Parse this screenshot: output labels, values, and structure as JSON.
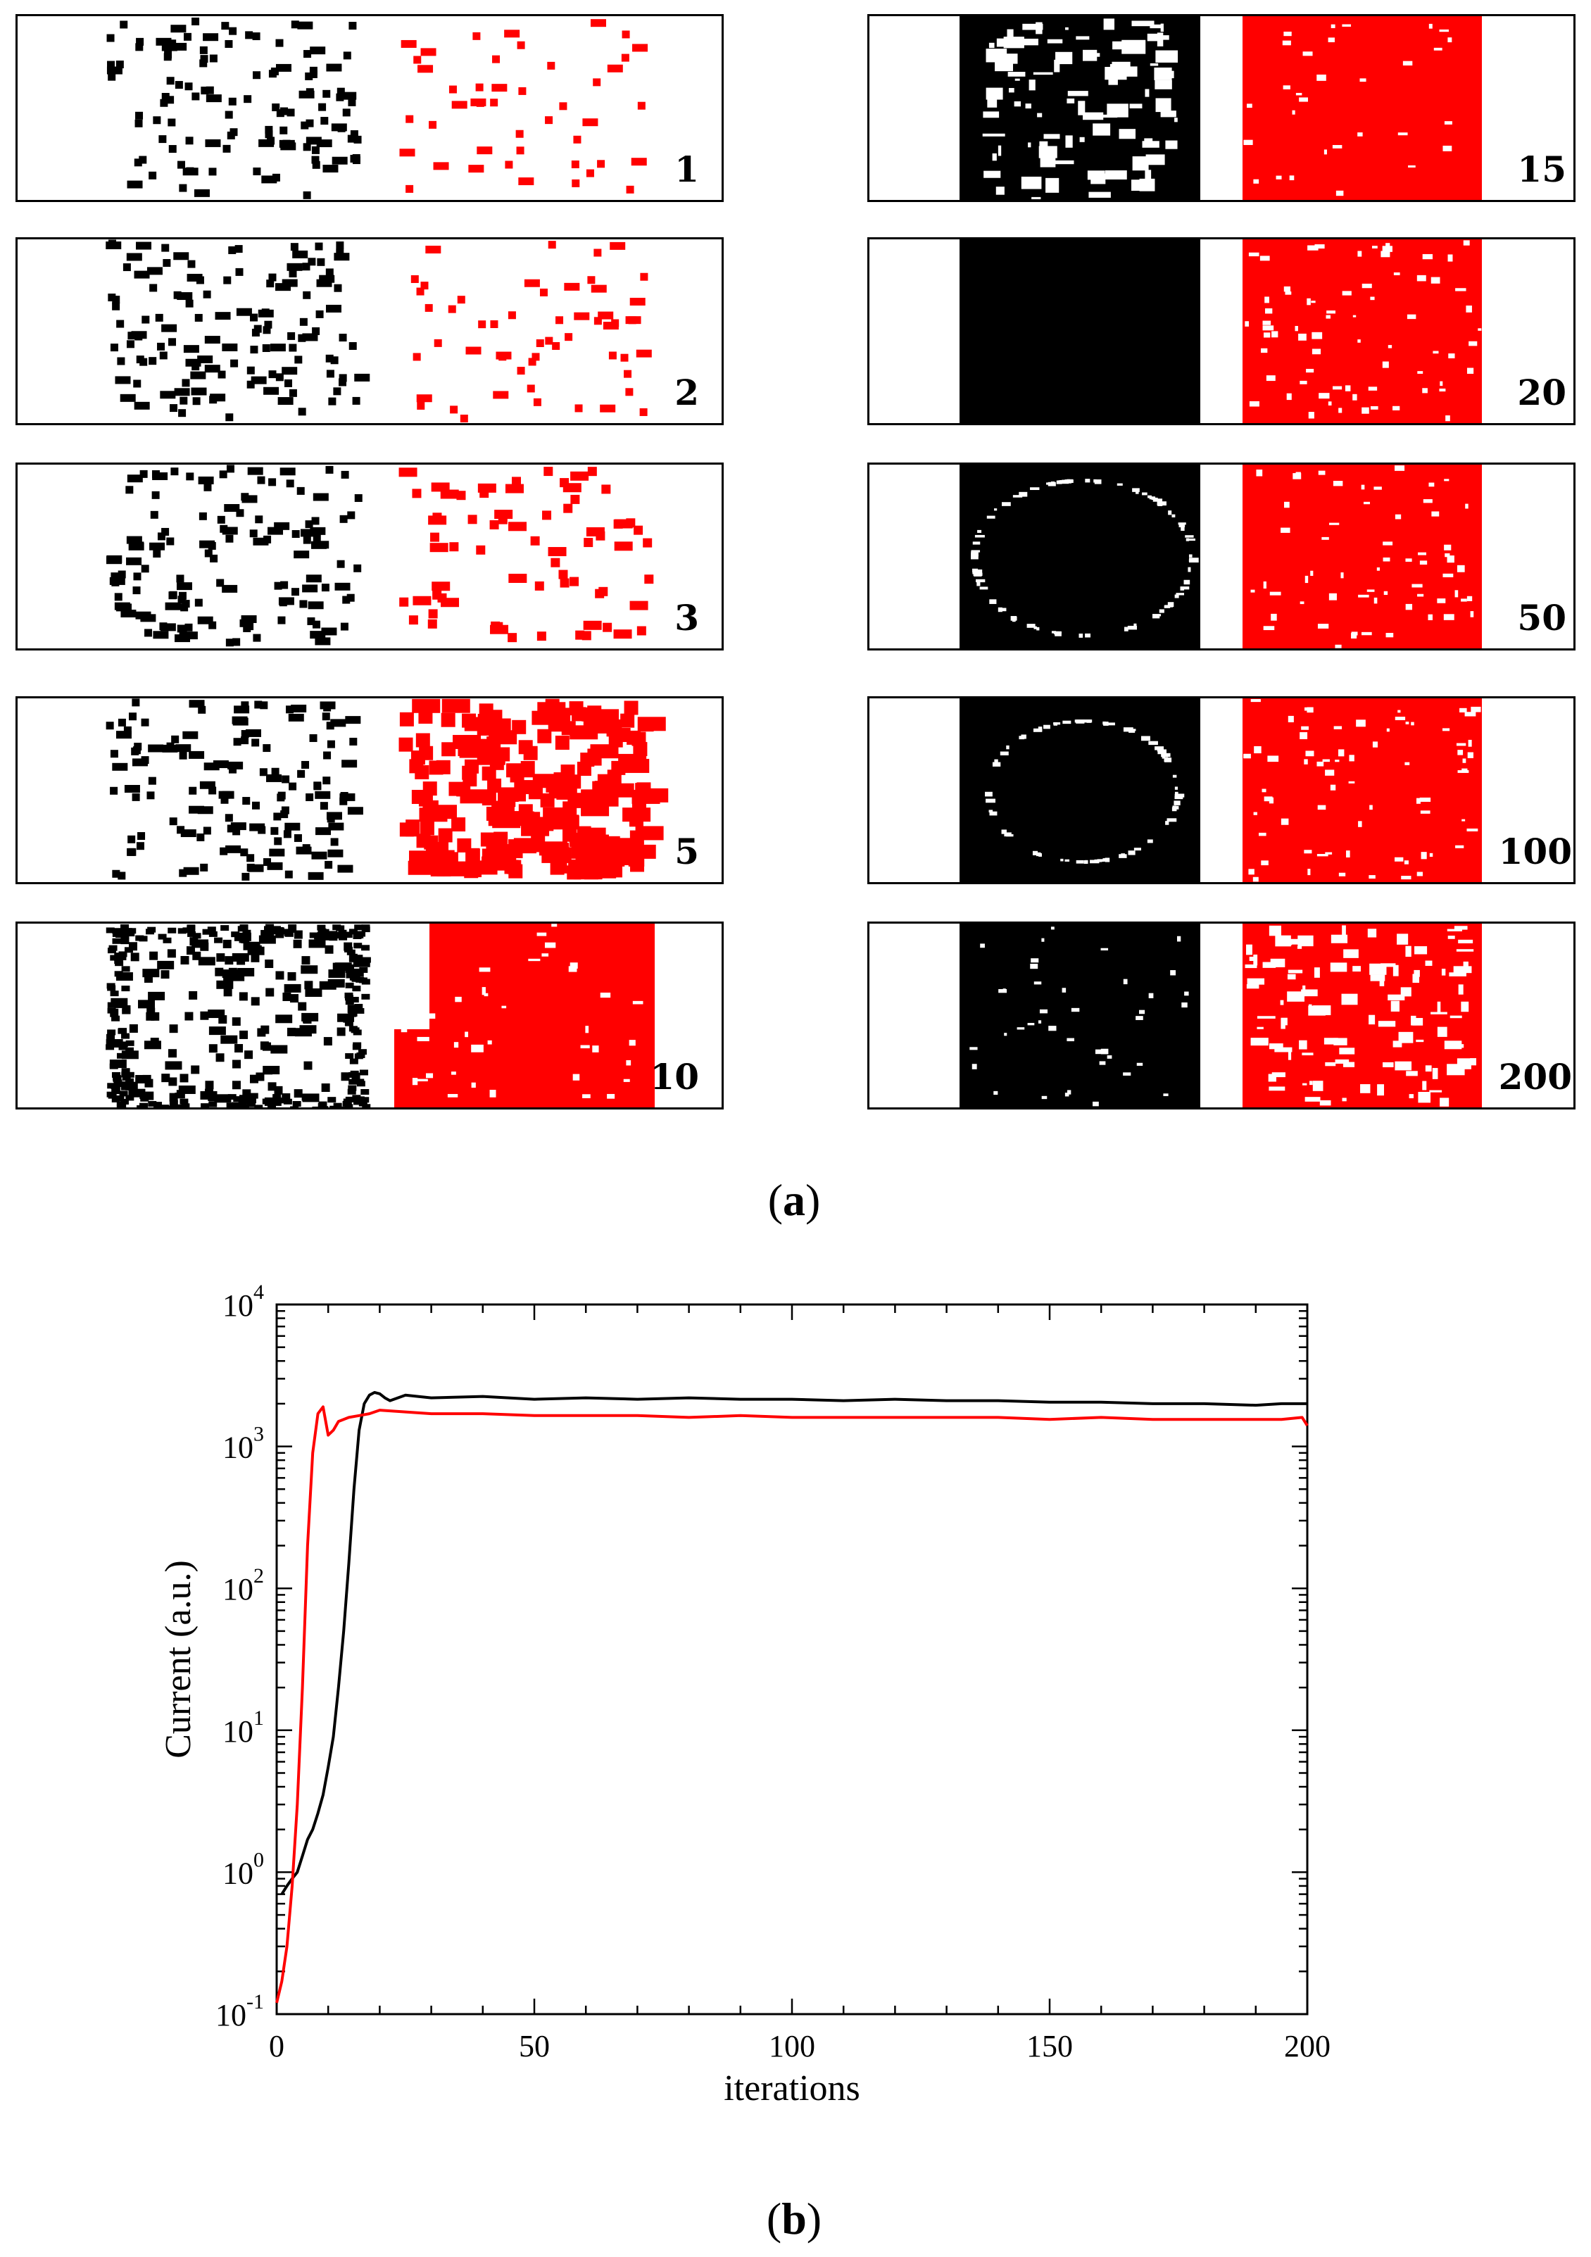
{
  "figure_a": {
    "caption_open": "(",
    "caption_letter": "a",
    "caption_close": ")",
    "colors": {
      "series_black": "#000000",
      "series_red": "#ff0000"
    },
    "snapshots": [
      {
        "iteration": "1"
      },
      {
        "iteration": "2"
      },
      {
        "iteration": "3"
      },
      {
        "iteration": "5"
      },
      {
        "iteration": "10"
      },
      {
        "iteration": "15"
      },
      {
        "iteration": "20"
      },
      {
        "iteration": "50"
      },
      {
        "iteration": "100"
      },
      {
        "iteration": "200"
      }
    ]
  },
  "figure_b": {
    "caption_open": "(",
    "caption_letter": "b",
    "caption_close": ")"
  },
  "chart_data": {
    "type": "line",
    "title": "",
    "xlabel": "iterations",
    "ylabel": "Current (a.u.)",
    "xlim": [
      0,
      200
    ],
    "ylim_log10": [
      -1,
      4
    ],
    "y_scale": "log",
    "x_ticks": [
      "0",
      "50",
      "100",
      "150",
      "200"
    ],
    "y_ticks": [
      {
        "base": "10",
        "exp": "-1"
      },
      {
        "base": "10",
        "exp": "0"
      },
      {
        "base": "10",
        "exp": "1"
      },
      {
        "base": "10",
        "exp": "2"
      },
      {
        "base": "10",
        "exp": "3"
      },
      {
        "base": "10",
        "exp": "4"
      }
    ],
    "grid": false,
    "series": [
      {
        "name": "black",
        "color": "#000000",
        "x": [
          1,
          2,
          3,
          4,
          5,
          6,
          7,
          8,
          9,
          10,
          11,
          12,
          13,
          14,
          15,
          16,
          17,
          18,
          19,
          20,
          21,
          22,
          25,
          30,
          40,
          50,
          60,
          70,
          80,
          90,
          100,
          110,
          120,
          130,
          140,
          150,
          160,
          170,
          180,
          190,
          195,
          200
        ],
        "y": [
          0.7,
          0.8,
          0.9,
          1.0,
          1.3,
          1.7,
          2.0,
          2.6,
          3.5,
          5.5,
          9,
          20,
          50,
          150,
          500,
          1300,
          2000,
          2300,
          2400,
          2350,
          2200,
          2100,
          2300,
          2200,
          2250,
          2150,
          2200,
          2150,
          2200,
          2150,
          2150,
          2100,
          2150,
          2100,
          2100,
          2050,
          2050,
          2000,
          2000,
          1950,
          2000,
          2000
        ]
      },
      {
        "name": "red",
        "color": "#ff0000",
        "x": [
          0,
          1,
          2,
          3,
          4,
          5,
          6,
          7,
          8,
          9,
          10,
          11,
          12,
          14,
          16,
          18,
          20,
          25,
          30,
          40,
          50,
          60,
          70,
          80,
          90,
          100,
          110,
          120,
          130,
          140,
          150,
          160,
          170,
          180,
          190,
          195,
          199,
          200
        ],
        "y": [
          0.12,
          0.17,
          0.3,
          0.8,
          3,
          20,
          200,
          900,
          1700,
          1900,
          1200,
          1300,
          1500,
          1600,
          1650,
          1700,
          1800,
          1750,
          1700,
          1700,
          1650,
          1650,
          1650,
          1600,
          1650,
          1600,
          1600,
          1600,
          1600,
          1600,
          1550,
          1600,
          1550,
          1550,
          1550,
          1550,
          1600,
          1400
        ]
      }
    ]
  }
}
